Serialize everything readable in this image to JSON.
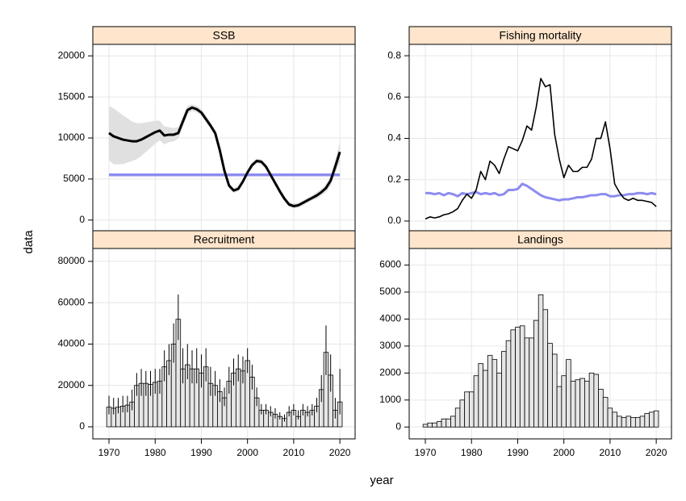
{
  "xlabel": "year",
  "ylabel": "data",
  "chart_data": [
    {
      "type": "line",
      "title": "SSB",
      "x": [
        1970,
        1971,
        1972,
        1973,
        1974,
        1975,
        1976,
        1977,
        1978,
        1979,
        1980,
        1981,
        1982,
        1983,
        1984,
        1985,
        1986,
        1987,
        1988,
        1989,
        1990,
        1991,
        1992,
        1993,
        1994,
        1995,
        1996,
        1997,
        1998,
        1999,
        2000,
        2001,
        2002,
        2003,
        2004,
        2005,
        2006,
        2007,
        2008,
        2009,
        2010,
        2011,
        2012,
        2013,
        2014,
        2015,
        2016,
        2017,
        2018,
        2019,
        2020
      ],
      "series": [
        {
          "color": "#000000",
          "values": [
            10600,
            10200,
            10000,
            9800,
            9700,
            9600,
            9600,
            9800,
            10100,
            10400,
            10700,
            10900,
            10300,
            10400,
            10400,
            10600,
            12000,
            13400,
            13700,
            13500,
            13100,
            12300,
            11500,
            10600,
            8500,
            6000,
            4200,
            3600,
            3800,
            4700,
            5800,
            6700,
            7200,
            7100,
            6500,
            5500,
            4500,
            3500,
            2600,
            1900,
            1700,
            1800,
            2100,
            2400,
            2700,
            3000,
            3400,
            3900,
            4800,
            6500,
            8300
          ]
        }
      ],
      "upper": [
        13900,
        13600,
        13200,
        12800,
        12400,
        12000,
        11800,
        11800,
        11900,
        12000,
        12100,
        12100,
        11400,
        11300,
        11200,
        11300,
        12600,
        13900,
        14100,
        13900,
        13500,
        12700,
        11900,
        11000,
        8900,
        6400,
        4500,
        3900,
        4100,
        5000,
        6100,
        7000,
        7500,
        7400,
        6800,
        5800,
        4800,
        3800,
        2900,
        2200,
        2000,
        2100,
        2400,
        2700,
        3000,
        3400,
        3800,
        4400,
        5400,
        7300,
        9500
      ],
      "lower": [
        7300,
        6800,
        6800,
        6800,
        7000,
        7200,
        7400,
        7800,
        8300,
        8800,
        9300,
        9700,
        9200,
        9500,
        9600,
        9900,
        11400,
        12900,
        13300,
        13100,
        12700,
        11900,
        11100,
        10200,
        8100,
        5600,
        3900,
        3300,
        3500,
        4400,
        5500,
        6400,
        6900,
        6800,
        6200,
        5200,
        4200,
        3200,
        2300,
        1600,
        1400,
        1500,
        1800,
        2100,
        2400,
        2600,
        3000,
        3400,
        4200,
        5700,
        7100
      ],
      "band_color": "#e0e0e0",
      "reference": {
        "value": 5500,
        "color": "#8c8cf0"
      },
      "xlim": [
        1966.5,
        2023.3
      ],
      "xticks": [
        1970,
        1980,
        1990,
        2000,
        2010,
        2020
      ],
      "ylim": [
        -1300,
        21400
      ],
      "yticks": [
        0,
        5000,
        10000,
        15000,
        20000
      ],
      "grid": true
    },
    {
      "type": "line",
      "title": "Fishing mortality",
      "x": [
        1970,
        1971,
        1972,
        1973,
        1974,
        1975,
        1976,
        1977,
        1978,
        1979,
        1980,
        1981,
        1982,
        1983,
        1984,
        1985,
        1986,
        1987,
        1988,
        1989,
        1990,
        1991,
        1992,
        1993,
        1994,
        1995,
        1996,
        1997,
        1998,
        1999,
        2000,
        2001,
        2002,
        2003,
        2004,
        2005,
        2006,
        2007,
        2008,
        2009,
        2010,
        2011,
        2012,
        2013,
        2014,
        2015,
        2016,
        2017,
        2018,
        2019,
        2020
      ],
      "series": [
        {
          "color": "#000000",
          "values": [
            0.01,
            0.02,
            0.015,
            0.02,
            0.03,
            0.035,
            0.045,
            0.06,
            0.1,
            0.13,
            0.11,
            0.15,
            0.24,
            0.2,
            0.29,
            0.27,
            0.23,
            0.3,
            0.36,
            0.35,
            0.34,
            0.39,
            0.46,
            0.44,
            0.55,
            0.69,
            0.65,
            0.66,
            0.42,
            0.3,
            0.21,
            0.27,
            0.24,
            0.24,
            0.26,
            0.26,
            0.3,
            0.4,
            0.4,
            0.48,
            0.35,
            0.18,
            0.14,
            0.11,
            0.1,
            0.11,
            0.1,
            0.1,
            0.095,
            0.09,
            0.07
          ]
        },
        {
          "color": "#8c8cf0",
          "values": [
            0.135,
            0.135,
            0.13,
            0.135,
            0.125,
            0.135,
            0.13,
            0.12,
            0.135,
            0.13,
            0.135,
            0.14,
            0.13,
            0.135,
            0.13,
            0.135,
            0.125,
            0.13,
            0.15,
            0.15,
            0.155,
            0.18,
            0.17,
            0.155,
            0.14,
            0.125,
            0.115,
            0.11,
            0.105,
            0.1,
            0.105,
            0.105,
            0.11,
            0.115,
            0.115,
            0.12,
            0.125,
            0.125,
            0.13,
            0.13,
            0.12,
            0.12,
            0.125,
            0.125,
            0.13,
            0.13,
            0.135,
            0.135,
            0.13,
            0.135,
            0.13
          ]
        }
      ],
      "xlim": [
        1966.5,
        2023.3
      ],
      "xticks": [
        1970,
        1980,
        1990,
        2000,
        2010,
        2020
      ],
      "ylim": [
        -0.047,
        0.855
      ],
      "yticks": [
        {
          "value": 0,
          "label": "0.0"
        },
        0.2,
        0.4,
        0.6,
        0.8
      ],
      "grid": true
    },
    {
      "type": "bar",
      "title": "Recruitment",
      "x": [
        1970,
        1971,
        1972,
        1973,
        1974,
        1975,
        1976,
        1977,
        1978,
        1979,
        1980,
        1981,
        1982,
        1983,
        1984,
        1985,
        1986,
        1987,
        1988,
        1989,
        1990,
        1991,
        1992,
        1993,
        1994,
        1995,
        1996,
        1997,
        1998,
        1999,
        2000,
        2001,
        2002,
        2003,
        2004,
        2005,
        2006,
        2007,
        2008,
        2009,
        2010,
        2011,
        2012,
        2013,
        2014,
        2015,
        2016,
        2017,
        2018,
        2019,
        2020
      ],
      "values": [
        9500,
        9000,
        9500,
        10000,
        10500,
        12000,
        20000,
        21000,
        21000,
        20500,
        21500,
        22000,
        29000,
        32000,
        40000,
        52000,
        28000,
        30000,
        28000,
        28000,
        26000,
        29000,
        21000,
        20000,
        17000,
        14000,
        22000,
        26000,
        28000,
        27000,
        32000,
        24000,
        14000,
        8000,
        8000,
        7000,
        6000,
        5000,
        4000,
        7000,
        8000,
        5000,
        8000,
        7000,
        8000,
        10000,
        18000,
        36000,
        25000,
        8000,
        12000
      ],
      "upper": [
        15000,
        14000,
        14000,
        15000,
        15000,
        18000,
        26000,
        28000,
        27000,
        27000,
        28000,
        28000,
        37000,
        40000,
        50000,
        64000,
        38000,
        40000,
        37000,
        38000,
        35000,
        38000,
        29000,
        27000,
        23000,
        19000,
        29000,
        33000,
        35000,
        34000,
        38000,
        30000,
        19000,
        11000,
        11000,
        10000,
        9000,
        7000,
        6000,
        10000,
        11000,
        8000,
        11000,
        10000,
        11000,
        14000,
        25000,
        49000,
        35000,
        14000,
        28000
      ],
      "lower": [
        6000,
        6000,
        6500,
        7000,
        7000,
        8000,
        15000,
        15000,
        15000,
        15000,
        16000,
        16000,
        22000,
        25000,
        31000,
        42000,
        21000,
        23000,
        21000,
        21000,
        19000,
        22000,
        15000,
        15000,
        12000,
        10000,
        16000,
        20000,
        22000,
        21000,
        26000,
        18000,
        10000,
        6000,
        6000,
        5000,
        4000,
        3500,
        2500,
        5000,
        5500,
        3500,
        5500,
        5000,
        5500,
        7000,
        12000,
        25000,
        17000,
        4000,
        6000
      ],
      "color": "#e6e6e6",
      "xlim": [
        1966.5,
        2023.3
      ],
      "xticks": [
        1970,
        1980,
        1990,
        2000,
        2010,
        2020
      ],
      "ylim": [
        -5850,
        86240
      ],
      "yticks": [
        0,
        20000,
        40000,
        60000,
        80000
      ],
      "grid": true
    },
    {
      "type": "bar",
      "title": "Landings",
      "x": [
        1970,
        1971,
        1972,
        1973,
        1974,
        1975,
        1976,
        1977,
        1978,
        1979,
        1980,
        1981,
        1982,
        1983,
        1984,
        1985,
        1986,
        1987,
        1988,
        1989,
        1990,
        1991,
        1992,
        1993,
        1994,
        1995,
        1996,
        1997,
        1998,
        1999,
        2000,
        2001,
        2002,
        2003,
        2004,
        2005,
        2006,
        2007,
        2008,
        2009,
        2010,
        2011,
        2012,
        2013,
        2014,
        2015,
        2016,
        2017,
        2018,
        2019,
        2020
      ],
      "values": [
        100,
        150,
        150,
        200,
        300,
        300,
        400,
        700,
        1000,
        1300,
        1300,
        1900,
        2350,
        2100,
        2650,
        2500,
        2000,
        2800,
        3200,
        3600,
        3700,
        3750,
        3300,
        3300,
        3950,
        4900,
        4350,
        3100,
        2700,
        1500,
        1900,
        2500,
        1700,
        1750,
        1800,
        1700,
        2000,
        1950,
        1400,
        1100,
        700,
        550,
        400,
        350,
        400,
        350,
        350,
        400,
        500,
        550,
        600
      ],
      "color": "#e6e6e6",
      "xlim": [
        1966.5,
        2023.3
      ],
      "xticks": [
        1970,
        1980,
        1990,
        2000,
        2010,
        2020
      ],
      "ylim": [
        -440,
        6615
      ],
      "yticks": [
        0,
        1000,
        2000,
        3000,
        4000,
        5000,
        6000
      ],
      "grid": true
    }
  ]
}
